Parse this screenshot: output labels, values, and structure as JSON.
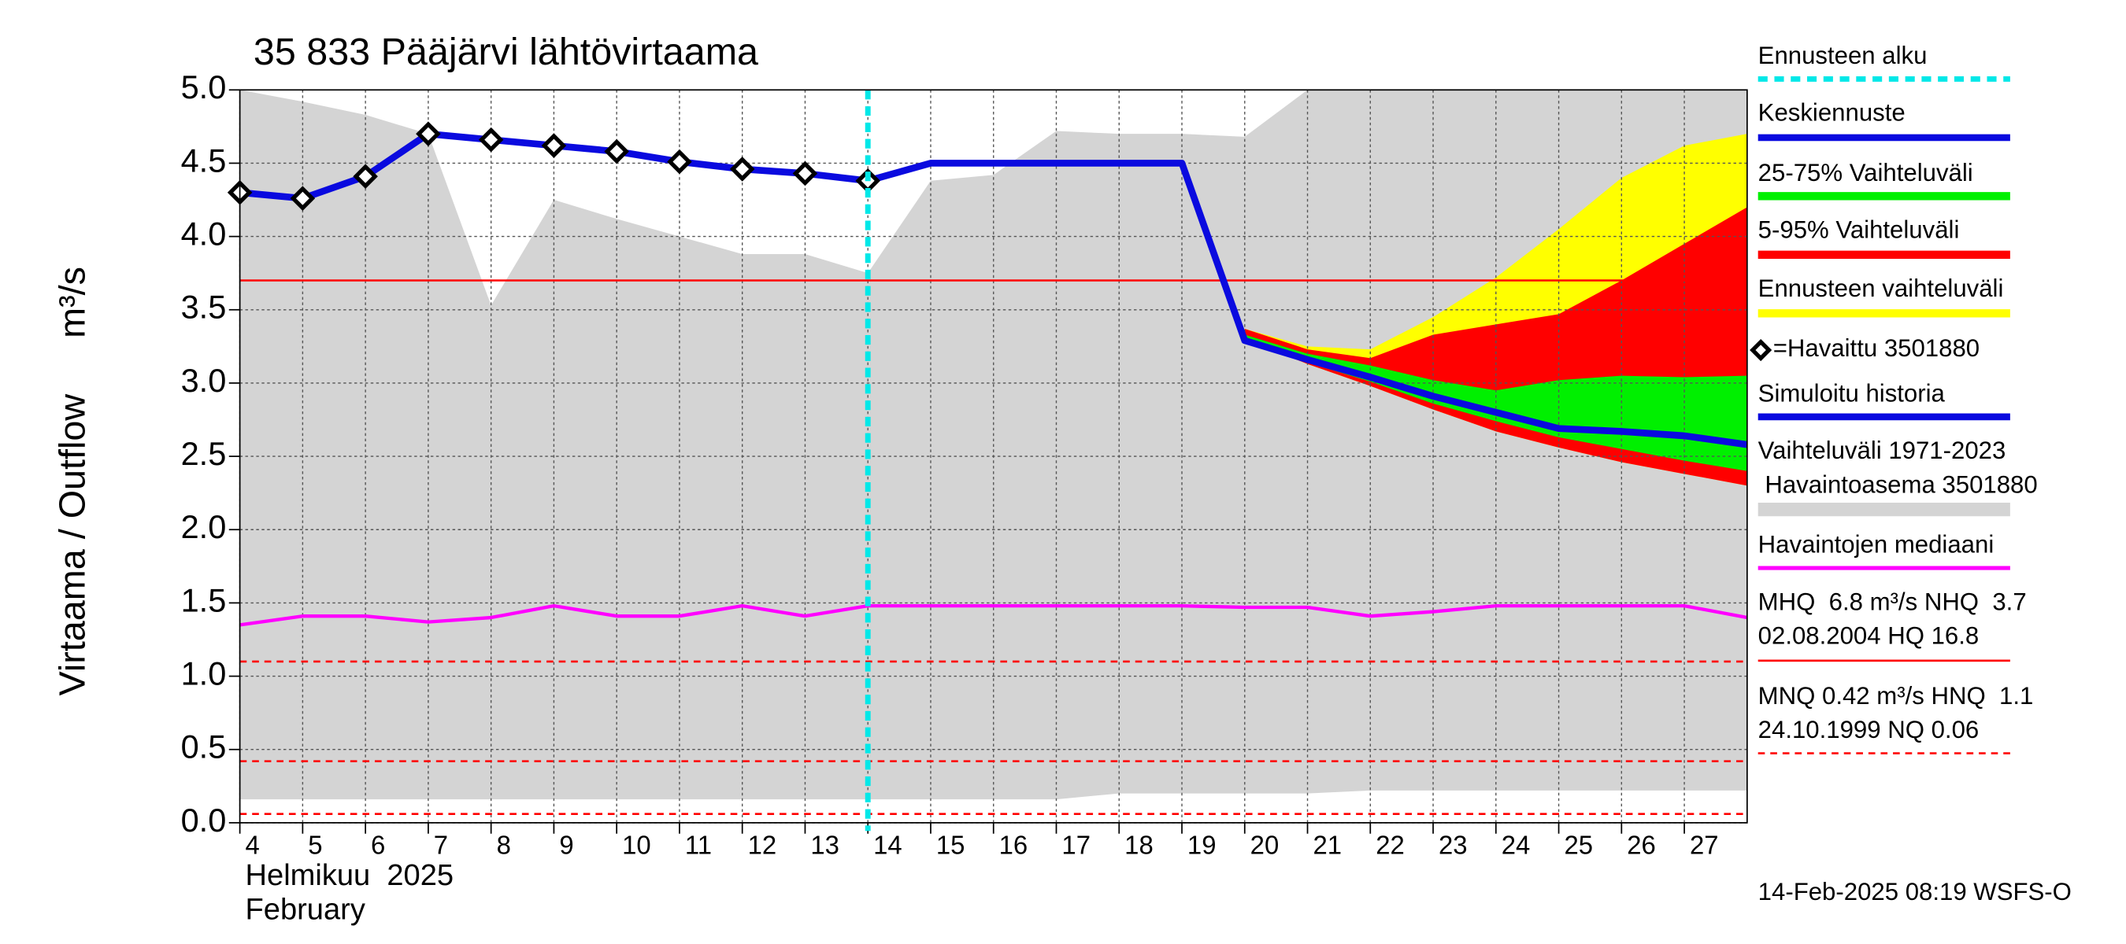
{
  "chart_data": {
    "type": "line",
    "title": "35 833 Pääjärvi lähtövirtaama",
    "ylabel": "Virtaama / Outflow",
    "yunit": "m³/s",
    "xlabel_lines": [
      "Helmikuu  2025",
      "February"
    ],
    "footer": "14-Feb-2025 08:19 WSFS-O",
    "xlim": [
      4,
      28
    ],
    "xticks": [
      4,
      5,
      6,
      7,
      8,
      9,
      10,
      11,
      12,
      13,
      14,
      15,
      16,
      17,
      18,
      19,
      20,
      21,
      22,
      23,
      24,
      25,
      26,
      27
    ],
    "ylim": [
      0,
      5
    ],
    "yticks": [
      {
        "value": 0,
        "label": "0.0"
      },
      0.5,
      {
        "value": 1,
        "label": "1.0"
      },
      1.5,
      {
        "value": 2,
        "label": "2.0"
      },
      2.5,
      {
        "value": 3,
        "label": "3.0"
      },
      3.5,
      {
        "value": 4,
        "label": "4.0"
      },
      4.5,
      {
        "value": 5,
        "label": "5.0"
      }
    ],
    "grid": true,
    "forecast_start": {
      "name": "Ennusteen alku",
      "x": 14,
      "color": "#00e8e8"
    },
    "series": [
      {
        "name": "Keskiennuste",
        "kind": "line",
        "color": "#0a0adf",
        "width": 5,
        "x": [
          14,
          15,
          16,
          17,
          18,
          19,
          20,
          21,
          22,
          23,
          24,
          25,
          26,
          27,
          28
        ],
        "values": [
          4.38,
          4.5,
          4.5,
          4.5,
          4.5,
          4.5,
          3.29,
          3.16,
          3.04,
          2.91,
          2.8,
          2.69,
          2.67,
          2.64,
          2.58
        ]
      },
      {
        "name": "25-75% Vaihteluväli",
        "kind": "band",
        "color": "#00f000",
        "x": [
          20,
          21,
          22,
          23,
          24,
          25,
          26,
          27,
          28
        ],
        "lower": [
          3.3,
          3.14,
          3.01,
          2.86,
          2.74,
          2.63,
          2.55,
          2.47,
          2.4
        ],
        "upper": [
          3.33,
          3.2,
          3.12,
          3.02,
          2.95,
          3.02,
          3.05,
          3.04,
          3.05
        ]
      },
      {
        "name": "5-95% Vaihteluväli",
        "kind": "band",
        "color": "#ff0000",
        "x": [
          20,
          21,
          22,
          23,
          24,
          25,
          26,
          27,
          28
        ],
        "lower": [
          3.3,
          3.13,
          2.98,
          2.82,
          2.67,
          2.56,
          2.46,
          2.38,
          2.3
        ],
        "upper": [
          3.37,
          3.23,
          3.17,
          3.33,
          3.4,
          3.47,
          3.7,
          3.95,
          4.2
        ]
      },
      {
        "name": "Ennusteen vaihteluväli",
        "kind": "band",
        "color": "#ffff00",
        "x": [
          20,
          21,
          22,
          23,
          24,
          25,
          26,
          27,
          28
        ],
        "lower": [
          3.3,
          3.13,
          2.98,
          2.82,
          2.67,
          2.56,
          2.46,
          2.38,
          2.3
        ],
        "upper": [
          3.37,
          3.25,
          3.23,
          3.45,
          3.72,
          4.05,
          4.4,
          4.62,
          4.7
        ]
      },
      {
        "name": "=Havaittu 3501880",
        "kind": "points",
        "color": "#000000",
        "x": [
          4,
          5,
          6,
          7,
          8,
          9,
          10,
          11,
          12,
          13,
          14
        ],
        "values": [
          4.3,
          4.26,
          4.41,
          4.7,
          4.66,
          4.62,
          4.58,
          4.51,
          4.46,
          4.43,
          4.38
        ]
      },
      {
        "name": "Simuloitu historia",
        "kind": "line",
        "color": "#0a0adf",
        "width": 5,
        "x": [
          4,
          5,
          6,
          7,
          8,
          9,
          10,
          11,
          12,
          13,
          14
        ],
        "values": [
          4.3,
          4.26,
          4.41,
          4.7,
          4.66,
          4.62,
          4.58,
          4.51,
          4.46,
          4.43,
          4.38
        ]
      },
      {
        "name": [
          "Vaihteluväli 1971-2023",
          " Havaintoasema 3501880"
        ],
        "kind": "band",
        "color": "#d4d4d4",
        "x": [
          4,
          5,
          6,
          7,
          8,
          9,
          10,
          11,
          12,
          13,
          14,
          15,
          16,
          17,
          18,
          19,
          20,
          21,
          22,
          23,
          24,
          25,
          26,
          27,
          28
        ],
        "lower": [
          0.16,
          0.16,
          0.16,
          0.16,
          0.16,
          0.16,
          0.16,
          0.16,
          0.16,
          0.16,
          0.16,
          0.16,
          0.16,
          0.16,
          0.2,
          0.2,
          0.2,
          0.2,
          0.22,
          0.22,
          0.22,
          0.22,
          0.22,
          0.22,
          0.22
        ],
        "upper": [
          5,
          4.92,
          4.83,
          4.7,
          3.53,
          4.25,
          4.12,
          4,
          3.88,
          3.88,
          3.75,
          4.38,
          4.42,
          4.72,
          4.7,
          4.7,
          4.68,
          5,
          5,
          5,
          5,
          5,
          5,
          5,
          5
        ]
      },
      {
        "name": "Havaintojen mediaani",
        "kind": "line",
        "color": "#ff00ff",
        "width": 2.5,
        "x": [
          4,
          5,
          6,
          7,
          8,
          9,
          10,
          11,
          12,
          13,
          14,
          15,
          16,
          17,
          18,
          19,
          20,
          21,
          22,
          23,
          24,
          25,
          26,
          27,
          28
        ],
        "values": [
          1.35,
          1.41,
          1.41,
          1.37,
          1.4,
          1.48,
          1.41,
          1.41,
          1.48,
          1.41,
          1.48,
          1.48,
          1.48,
          1.48,
          1.48,
          1.48,
          1.47,
          1.47,
          1.41,
          1.44,
          1.48,
          1.48,
          1.48,
          1.48,
          1.4
        ]
      }
    ],
    "reference_lines": [
      {
        "name": [
          "MHQ  6.8 m³/s NHQ  3.7",
          "02.08.2004 HQ 16.8"
        ],
        "color": "#ff0000",
        "dashed": false,
        "values": [
          3.7
        ]
      },
      {
        "name": [
          "MNQ 0.42 m³/s HNQ  1.1",
          "24.10.1999 NQ 0.06"
        ],
        "color": "#ff0000",
        "dashed": true,
        "values": [
          1.1,
          0.42,
          0.06
        ]
      }
    ]
  }
}
